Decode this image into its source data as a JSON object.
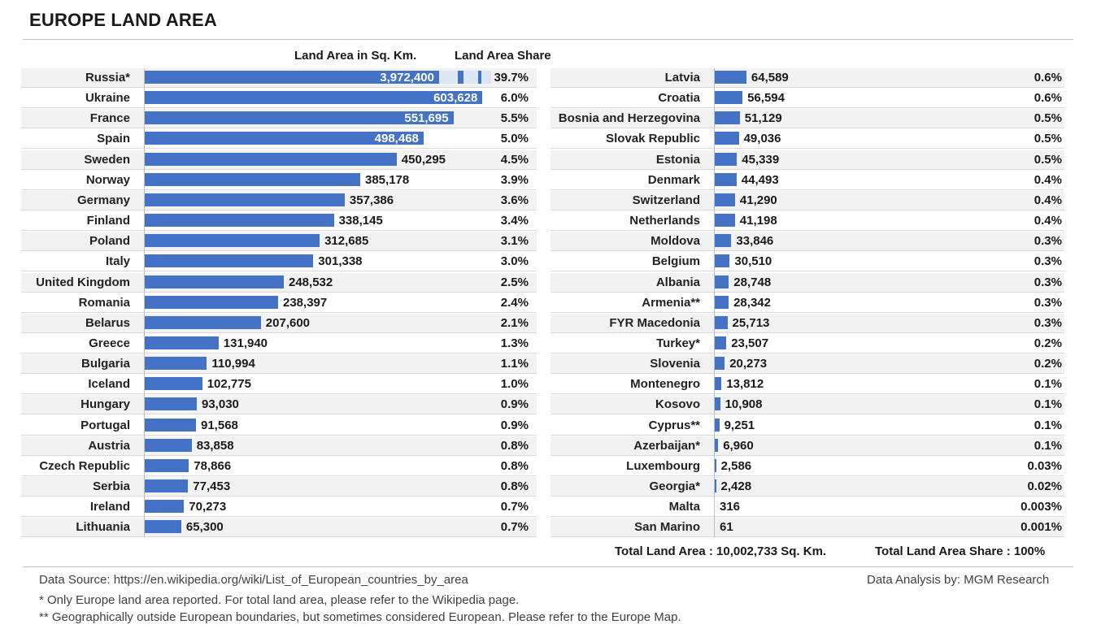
{
  "title": "EUROPE LAND AREA",
  "headers": {
    "area": "Land Area in Sq. Km.",
    "share": "Land Area Share"
  },
  "colors": {
    "bar": "#4472c4",
    "row_shade": "#f2f2f2",
    "rule": "#bfbfbf"
  },
  "chart_data": {
    "type": "bar",
    "orientation": "horizontal",
    "title": "EUROPE LAND AREA",
    "xlabel": "Land Area in Sq. Km.",
    "ylabel": "",
    "axis_break": {
      "country": "Russia*",
      "note": "bar truncated with break marks"
    },
    "left": [
      {
        "country": "Russia*",
        "value": 3972400,
        "label": "3,972,400",
        "share": "39.7%"
      },
      {
        "country": "Ukraine",
        "value": 603628,
        "label": "603,628",
        "share": "6.0%"
      },
      {
        "country": "France",
        "value": 551695,
        "label": "551,695",
        "share": "5.5%"
      },
      {
        "country": "Spain",
        "value": 498468,
        "label": "498,468",
        "share": "5.0%"
      },
      {
        "country": "Sweden",
        "value": 450295,
        "label": "450,295",
        "share": "4.5%"
      },
      {
        "country": "Norway",
        "value": 385178,
        "label": "385,178",
        "share": "3.9%"
      },
      {
        "country": "Germany",
        "value": 357386,
        "label": "357,386",
        "share": "3.6%"
      },
      {
        "country": "Finland",
        "value": 338145,
        "label": "338,145",
        "share": "3.4%"
      },
      {
        "country": "Poland",
        "value": 312685,
        "label": "312,685",
        "share": "3.1%"
      },
      {
        "country": "Italy",
        "value": 301338,
        "label": "301,338",
        "share": "3.0%"
      },
      {
        "country": "United Kingdom",
        "value": 248532,
        "label": "248,532",
        "share": "2.5%"
      },
      {
        "country": "Romania",
        "value": 238397,
        "label": "238,397",
        "share": "2.4%"
      },
      {
        "country": "Belarus",
        "value": 207600,
        "label": "207,600",
        "share": "2.1%"
      },
      {
        "country": "Greece",
        "value": 131940,
        "label": "131,940",
        "share": "1.3%"
      },
      {
        "country": "Bulgaria",
        "value": 110994,
        "label": "110,994",
        "share": "1.1%"
      },
      {
        "country": "Iceland",
        "value": 102775,
        "label": "102,775",
        "share": "1.0%"
      },
      {
        "country": "Hungary",
        "value": 93030,
        "label": "93,030",
        "share": "0.9%"
      },
      {
        "country": "Portugal",
        "value": 91568,
        "label": "91,568",
        "share": "0.9%"
      },
      {
        "country": "Austria",
        "value": 83858,
        "label": "83,858",
        "share": "0.8%"
      },
      {
        "country": "Czech Republic",
        "value": 78866,
        "label": "78,866",
        "share": "0.8%"
      },
      {
        "country": "Serbia",
        "value": 77453,
        "label": "77,453",
        "share": "0.8%"
      },
      {
        "country": "Ireland",
        "value": 70273,
        "label": "70,273",
        "share": "0.7%"
      },
      {
        "country": "Lithuania",
        "value": 65300,
        "label": "65,300",
        "share": "0.7%"
      }
    ],
    "right": [
      {
        "country": "Latvia",
        "value": 64589,
        "label": "64,589",
        "share": "0.6%"
      },
      {
        "country": "Croatia",
        "value": 56594,
        "label": "56,594",
        "share": "0.6%"
      },
      {
        "country": "Bosnia and Herzegovina",
        "value": 51129,
        "label": "51,129",
        "share": "0.5%"
      },
      {
        "country": "Slovak Republic",
        "value": 49036,
        "label": "49,036",
        "share": "0.5%"
      },
      {
        "country": "Estonia",
        "value": 45339,
        "label": "45,339",
        "share": "0.5%"
      },
      {
        "country": "Denmark",
        "value": 44493,
        "label": "44,493",
        "share": "0.4%"
      },
      {
        "country": "Switzerland",
        "value": 41290,
        "label": "41,290",
        "share": "0.4%"
      },
      {
        "country": "Netherlands",
        "value": 41198,
        "label": "41,198",
        "share": "0.4%"
      },
      {
        "country": "Moldova",
        "value": 33846,
        "label": "33,846",
        "share": "0.3%"
      },
      {
        "country": "Belgium",
        "value": 30510,
        "label": "30,510",
        "share": "0.3%"
      },
      {
        "country": "Albania",
        "value": 28748,
        "label": "28,748",
        "share": "0.3%"
      },
      {
        "country": "Armenia**",
        "value": 28342,
        "label": "28,342",
        "share": "0.3%"
      },
      {
        "country": "FYR Macedonia",
        "value": 25713,
        "label": "25,713",
        "share": "0.3%"
      },
      {
        "country": "Turkey*",
        "value": 23507,
        "label": "23,507",
        "share": "0.2%"
      },
      {
        "country": "Slovenia",
        "value": 20273,
        "label": "20,273",
        "share": "0.2%"
      },
      {
        "country": "Montenegro",
        "value": 13812,
        "label": "13,812",
        "share": "0.1%"
      },
      {
        "country": "Kosovo",
        "value": 10908,
        "label": "10,908",
        "share": "0.1%"
      },
      {
        "country": "Cyprus**",
        "value": 9251,
        "label": "9,251",
        "share": "0.1%"
      },
      {
        "country": "Azerbaijan*",
        "value": 6960,
        "label": "6,960",
        "share": "0.1%"
      },
      {
        "country": "Luxembourg",
        "value": 2586,
        "label": "2,586",
        "share": "0.03%"
      },
      {
        "country": "Georgia*",
        "value": 2428,
        "label": "2,428",
        "share": "0.02%"
      },
      {
        "country": "Malta",
        "value": 316,
        "label": "316",
        "share": "0.003%"
      },
      {
        "country": "San Marino",
        "value": 61,
        "label": "61",
        "share": "0.001%"
      }
    ]
  },
  "totals": {
    "area": "Total Land Area : 10,002,733 Sq. Km.",
    "share": "Total Land Area Share : 100%"
  },
  "footer": {
    "source": "Data Source: https://en.wikipedia.org/wiki/List_of_European_countries_by_area",
    "analysis": "Data Analysis by: MGM Research",
    "note1": "* Only Europe land area reported. For total land area, please refer to the Wikipedia page.",
    "note2": "** Geographically outside European boundaries, but sometimes considered European. Please refer to the Europe Map."
  }
}
